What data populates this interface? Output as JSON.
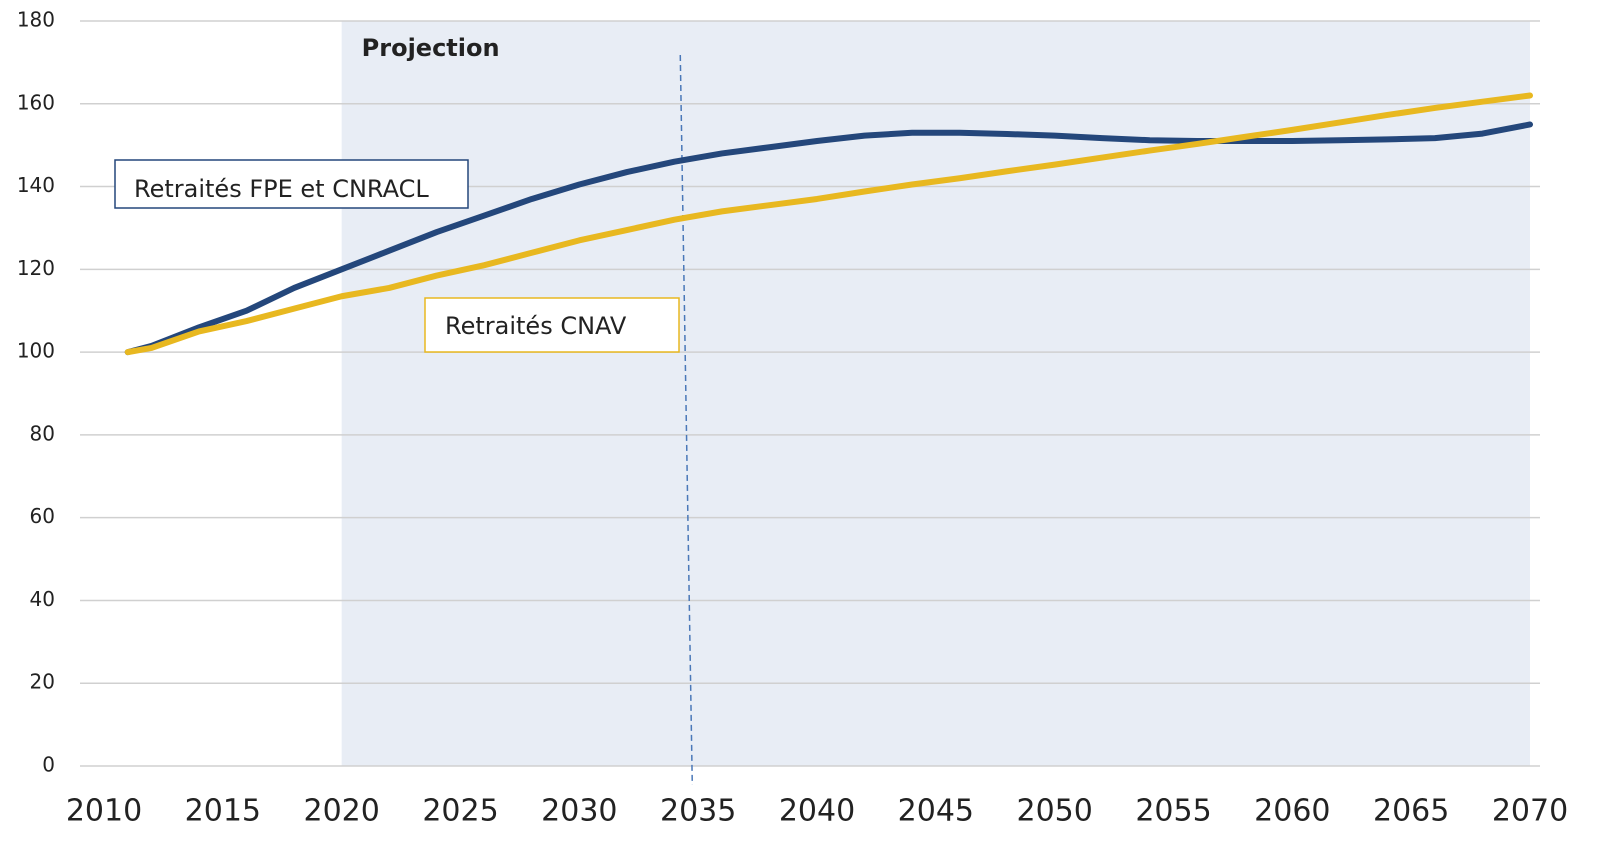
{
  "chart_data": {
    "type": "line",
    "x": [
      2011,
      2012,
      2014,
      2016,
      2018,
      2020,
      2022,
      2024,
      2026,
      2028,
      2030,
      2032,
      2034,
      2036,
      2038,
      2040,
      2042,
      2044,
      2046,
      2048,
      2050,
      2052,
      2054,
      2056,
      2058,
      2060,
      2062,
      2064,
      2066,
      2068,
      2070
    ],
    "series": [
      {
        "name": "Retraités FPE et CNRACL",
        "color": "#24477b",
        "values": [
          100,
          101.5,
          106,
          110,
          115.5,
          120,
          124.5,
          129,
          133,
          137,
          140.5,
          143.5,
          146,
          148,
          149.5,
          151,
          152.3,
          153,
          153,
          152.7,
          152.3,
          151.7,
          151.2,
          151,
          151,
          151,
          151.2,
          151.4,
          151.7,
          152.8,
          155
        ]
      },
      {
        "name": "Retraités CNAV",
        "color": "#e8b820",
        "values": [
          100,
          101,
          105,
          107.5,
          110.5,
          113.5,
          115.5,
          118.5,
          121,
          124,
          127,
          129.5,
          132,
          134,
          135.5,
          137,
          138.8,
          140.5,
          142,
          143.7,
          145.3,
          147,
          148.7,
          150.3,
          152,
          153.7,
          155.5,
          157.3,
          159,
          160.5,
          162
        ]
      }
    ],
    "projection": {
      "label": "Projection",
      "x_start": 2020,
      "color": "#e8edf5"
    },
    "reference_line_x": 2034.5,
    "xlim": [
      2010,
      2070
    ],
    "xticks": [
      2010,
      2015,
      2020,
      2025,
      2030,
      2035,
      2040,
      2045,
      2050,
      2055,
      2060,
      2065,
      2070
    ],
    "ylim": [
      0,
      180
    ],
    "yticks": [
      0,
      20,
      40,
      60,
      80,
      100,
      120,
      140,
      160,
      180
    ],
    "grid": true
  }
}
